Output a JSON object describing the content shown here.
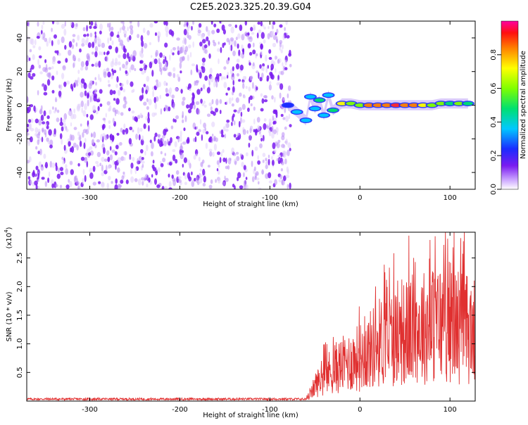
{
  "title": "C2E5.2023.325.20.39.G04",
  "colors": {
    "noise": "#7a1bf0",
    "signal_low": "#2a4bff",
    "signal_mid": "#00e0a0",
    "signal_high": "#ff2a2a",
    "snr_line": "#e03030"
  },
  "chart_data": [
    {
      "type": "heatmap",
      "xlabel": "Height of straight line (km)",
      "ylabel": "Frequency (Hz)",
      "xlim": [
        -370,
        128
      ],
      "ylim": [
        -50,
        50
      ],
      "x_ticks": [
        -300,
        -200,
        -100,
        0,
        100
      ],
      "x_tick_labels": [
        "-300",
        "-200",
        "-100",
        "0",
        "100"
      ],
      "y_ticks": [
        -40,
        -20,
        0,
        20,
        40
      ],
      "y_tick_labels": [
        "-40",
        "-20",
        "0",
        "20",
        "40"
      ],
      "noise_region_x": [
        -370,
        -80
      ],
      "signal_track": [
        {
          "x": -80,
          "y": 0,
          "amp": 0.35
        },
        {
          "x": -70,
          "y": -4,
          "amp": 0.4
        },
        {
          "x": -60,
          "y": -9,
          "amp": 0.45
        },
        {
          "x": -55,
          "y": 5,
          "amp": 0.4
        },
        {
          "x": -50,
          "y": -2,
          "amp": 0.45
        },
        {
          "x": -45,
          "y": 3,
          "amp": 0.5
        },
        {
          "x": -40,
          "y": -6,
          "amp": 0.45
        },
        {
          "x": -35,
          "y": 6,
          "amp": 0.4
        },
        {
          "x": -30,
          "y": -3,
          "amp": 0.5
        },
        {
          "x": -20,
          "y": 1,
          "amp": 0.75
        },
        {
          "x": -10,
          "y": 1,
          "amp": 0.6
        },
        {
          "x": 0,
          "y": 0,
          "amp": 0.65
        },
        {
          "x": 10,
          "y": 0,
          "amp": 0.8
        },
        {
          "x": 20,
          "y": 0,
          "amp": 0.85
        },
        {
          "x": 30,
          "y": 0,
          "amp": 0.85
        },
        {
          "x": 40,
          "y": 0,
          "amp": 0.9
        },
        {
          "x": 50,
          "y": 0,
          "amp": 0.85
        },
        {
          "x": 60,
          "y": 0,
          "amp": 0.8
        },
        {
          "x": 70,
          "y": 0,
          "amp": 0.75
        },
        {
          "x": 80,
          "y": 0,
          "amp": 0.65
        },
        {
          "x": 90,
          "y": 1,
          "amp": 0.6
        },
        {
          "x": 100,
          "y": 1,
          "amp": 0.55
        },
        {
          "x": 110,
          "y": 1,
          "amp": 0.6
        },
        {
          "x": 120,
          "y": 1,
          "amp": 0.55
        }
      ],
      "colorbar": {
        "label": "Normalized spectral amplitude",
        "range": [
          0,
          1
        ],
        "ticks": [
          0.0,
          0.2,
          0.4,
          0.6,
          0.8
        ],
        "tick_labels": [
          "0.0",
          "0.2",
          "0.4",
          "0.6",
          "0.8"
        ]
      }
    },
    {
      "type": "line",
      "xlabel": "Height of straight line (km)",
      "ylabel": "SNR (10 * v/v)",
      "y_multiplier_label": "(x10",
      "y_multiplier_exp": "4",
      "y_multiplier_close": ")",
      "xlim": [
        -370,
        128
      ],
      "ylim": [
        0,
        2.95
      ],
      "x_ticks": [
        -300,
        -200,
        -100,
        0,
        100
      ],
      "x_tick_labels": [
        "-300",
        "-200",
        "-100",
        "0",
        "100"
      ],
      "y_ticks": [
        0.5,
        1.0,
        1.5,
        2.0,
        2.5
      ],
      "y_tick_labels": [
        "0.5",
        "1.0",
        "1.5",
        "2.0",
        "2.5"
      ],
      "envelope": [
        {
          "x": -370,
          "y": 0.04
        },
        {
          "x": -60,
          "y": 0.04
        },
        {
          "x": -55,
          "y": 0.15
        },
        {
          "x": -50,
          "y": 0.4
        },
        {
          "x": -40,
          "y": 0.6
        },
        {
          "x": -30,
          "y": 0.8
        },
        {
          "x": -20,
          "y": 0.9
        },
        {
          "x": -10,
          "y": 1.0
        },
        {
          "x": 0,
          "y": 1.1
        },
        {
          "x": 10,
          "y": 1.25
        },
        {
          "x": 20,
          "y": 1.45
        },
        {
          "x": 30,
          "y": 1.55
        },
        {
          "x": 40,
          "y": 1.6
        },
        {
          "x": 50,
          "y": 1.7
        },
        {
          "x": 60,
          "y": 1.8
        },
        {
          "x": 70,
          "y": 1.85
        },
        {
          "x": 80,
          "y": 1.9
        },
        {
          "x": 90,
          "y": 1.95
        },
        {
          "x": 100,
          "y": 2.0
        },
        {
          "x": 110,
          "y": 1.9
        },
        {
          "x": 120,
          "y": 1.8
        },
        {
          "x": 128,
          "y": 1.7
        }
      ],
      "peak_max": 2.95
    }
  ]
}
